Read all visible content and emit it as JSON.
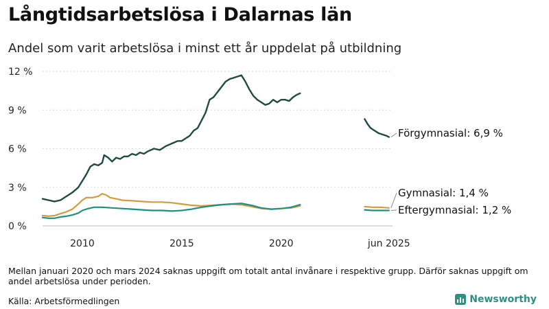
{
  "title": "Långtidsarbetslösa i Dalarnas län",
  "subtitle": "Andel som varit arbetslösa i minst ett år uppdelat på utbildning",
  "note": "Mellan januari 2020 och mars 2024 saknas uppgift om totalt antal invånare i respektive grupp. Därför saknas uppgift om andel arbetslösa under perioden.",
  "source": "Källa: Arbetsförmedlingen",
  "brand": "Newsworthy",
  "chart_data": {
    "type": "line",
    "title": "Långtidsarbetslösa i Dalarnas län",
    "subtitle": "Andel som varit arbetslösa i minst ett år uppdelat på utbildning",
    "ylim": [
      0,
      12
    ],
    "xlim": [
      2008.0,
      2025.6
    ],
    "y_ticks": [
      0,
      3,
      6,
      9,
      12
    ],
    "y_tick_labels": [
      "0 %",
      "3 %",
      "6 %",
      "9 %",
      "12 %"
    ],
    "x_ticks": [
      2010,
      2015,
      2020,
      2025.42
    ],
    "x_tick_labels": [
      "2010",
      "2015",
      "2020",
      "jun 2025"
    ],
    "grid": "horizontal",
    "series": [
      {
        "name": "Förgymnasial",
        "end_label": "Förgymnasial: 6,9 %",
        "color": "#1f4a40",
        "segments": [
          [
            [
              2008.0,
              2.1
            ],
            [
              2008.3,
              2.0
            ],
            [
              2008.6,
              1.9
            ],
            [
              2008.9,
              2.0
            ],
            [
              2009.2,
              2.3
            ],
            [
              2009.5,
              2.6
            ],
            [
              2009.8,
              3.0
            ],
            [
              2010.0,
              3.5
            ],
            [
              2010.2,
              4.0
            ],
            [
              2010.4,
              4.6
            ],
            [
              2010.6,
              4.8
            ],
            [
              2010.8,
              4.7
            ],
            [
              2011.0,
              4.9
            ],
            [
              2011.1,
              5.5
            ],
            [
              2011.3,
              5.3
            ],
            [
              2011.5,
              5.0
            ],
            [
              2011.7,
              5.3
            ],
            [
              2011.9,
              5.2
            ],
            [
              2012.1,
              5.4
            ],
            [
              2012.3,
              5.4
            ],
            [
              2012.5,
              5.6
            ],
            [
              2012.7,
              5.5
            ],
            [
              2012.9,
              5.7
            ],
            [
              2013.1,
              5.6
            ],
            [
              2013.3,
              5.8
            ],
            [
              2013.6,
              6.0
            ],
            [
              2013.9,
              5.9
            ],
            [
              2014.2,
              6.2
            ],
            [
              2014.5,
              6.4
            ],
            [
              2014.8,
              6.6
            ],
            [
              2015.0,
              6.6
            ],
            [
              2015.2,
              6.8
            ],
            [
              2015.4,
              7.0
            ],
            [
              2015.6,
              7.4
            ],
            [
              2015.8,
              7.6
            ],
            [
              2016.0,
              8.2
            ],
            [
              2016.2,
              8.8
            ],
            [
              2016.4,
              9.8
            ],
            [
              2016.6,
              10.0
            ],
            [
              2016.8,
              10.4
            ],
            [
              2017.0,
              10.8
            ],
            [
              2017.2,
              11.2
            ],
            [
              2017.4,
              11.4
            ],
            [
              2017.6,
              11.5
            ],
            [
              2017.8,
              11.6
            ],
            [
              2018.0,
              11.7
            ],
            [
              2018.2,
              11.2
            ],
            [
              2018.4,
              10.6
            ],
            [
              2018.6,
              10.1
            ],
            [
              2018.8,
              9.8
            ],
            [
              2019.0,
              9.6
            ],
            [
              2019.2,
              9.4
            ],
            [
              2019.4,
              9.5
            ],
            [
              2019.6,
              9.8
            ],
            [
              2019.8,
              9.6
            ],
            [
              2020.0,
              9.8
            ],
            [
              2020.2,
              9.8
            ],
            [
              2020.4,
              9.7
            ],
            [
              2020.6,
              10.0
            ],
            [
              2020.8,
              10.2
            ],
            [
              2020.95,
              10.3
            ]
          ],
          [
            [
              2024.2,
              8.3
            ],
            [
              2024.35,
              7.9
            ],
            [
              2024.5,
              7.6
            ],
            [
              2024.7,
              7.4
            ],
            [
              2024.9,
              7.2
            ],
            [
              2025.1,
              7.1
            ],
            [
              2025.3,
              7.0
            ],
            [
              2025.42,
              6.9
            ]
          ]
        ]
      },
      {
        "name": "Gymnasial",
        "end_label": "Gymnasial: 1,4 %",
        "color": "#d39a3e",
        "segments": [
          [
            [
              2008.0,
              0.8
            ],
            [
              2008.3,
              0.75
            ],
            [
              2008.6,
              0.8
            ],
            [
              2008.9,
              0.95
            ],
            [
              2009.2,
              1.1
            ],
            [
              2009.5,
              1.3
            ],
            [
              2009.8,
              1.7
            ],
            [
              2010.0,
              2.0
            ],
            [
              2010.2,
              2.2
            ],
            [
              2010.5,
              2.2
            ],
            [
              2010.8,
              2.3
            ],
            [
              2011.0,
              2.5
            ],
            [
              2011.2,
              2.4
            ],
            [
              2011.4,
              2.2
            ],
            [
              2011.7,
              2.1
            ],
            [
              2012.0,
              2.0
            ],
            [
              2012.5,
              1.95
            ],
            [
              2013.0,
              1.9
            ],
            [
              2013.5,
              1.85
            ],
            [
              2014.0,
              1.85
            ],
            [
              2014.5,
              1.8
            ],
            [
              2015.0,
              1.7
            ],
            [
              2015.5,
              1.6
            ],
            [
              2016.0,
              1.55
            ],
            [
              2016.5,
              1.6
            ],
            [
              2017.0,
              1.65
            ],
            [
              2017.5,
              1.7
            ],
            [
              2018.0,
              1.65
            ],
            [
              2018.5,
              1.5
            ],
            [
              2019.0,
              1.35
            ],
            [
              2019.5,
              1.3
            ],
            [
              2020.0,
              1.35
            ],
            [
              2020.5,
              1.4
            ],
            [
              2020.95,
              1.55
            ]
          ],
          [
            [
              2024.2,
              1.5
            ],
            [
              2024.6,
              1.45
            ],
            [
              2025.0,
              1.45
            ],
            [
              2025.42,
              1.4
            ]
          ]
        ]
      },
      {
        "name": "Eftergymnasial",
        "end_label": "Eftergymnasial: 1,2 %",
        "color": "#1e8f81",
        "segments": [
          [
            [
              2008.0,
              0.65
            ],
            [
              2008.3,
              0.6
            ],
            [
              2008.6,
              0.6
            ],
            [
              2008.9,
              0.7
            ],
            [
              2009.2,
              0.75
            ],
            [
              2009.5,
              0.85
            ],
            [
              2009.8,
              1.0
            ],
            [
              2010.0,
              1.2
            ],
            [
              2010.3,
              1.35
            ],
            [
              2010.6,
              1.45
            ],
            [
              2011.0,
              1.45
            ],
            [
              2011.5,
              1.4
            ],
            [
              2012.0,
              1.35
            ],
            [
              2012.5,
              1.3
            ],
            [
              2013.0,
              1.25
            ],
            [
              2013.5,
              1.2
            ],
            [
              2014.0,
              1.2
            ],
            [
              2014.5,
              1.15
            ],
            [
              2015.0,
              1.2
            ],
            [
              2015.5,
              1.3
            ],
            [
              2016.0,
              1.45
            ],
            [
              2016.5,
              1.55
            ],
            [
              2017.0,
              1.65
            ],
            [
              2017.5,
              1.7
            ],
            [
              2018.0,
              1.75
            ],
            [
              2018.5,
              1.6
            ],
            [
              2019.0,
              1.4
            ],
            [
              2019.5,
              1.3
            ],
            [
              2020.0,
              1.35
            ],
            [
              2020.5,
              1.45
            ],
            [
              2020.95,
              1.65
            ]
          ],
          [
            [
              2024.2,
              1.25
            ],
            [
              2024.6,
              1.2
            ],
            [
              2025.0,
              1.2
            ],
            [
              2025.42,
              1.2
            ]
          ]
        ]
      }
    ]
  }
}
